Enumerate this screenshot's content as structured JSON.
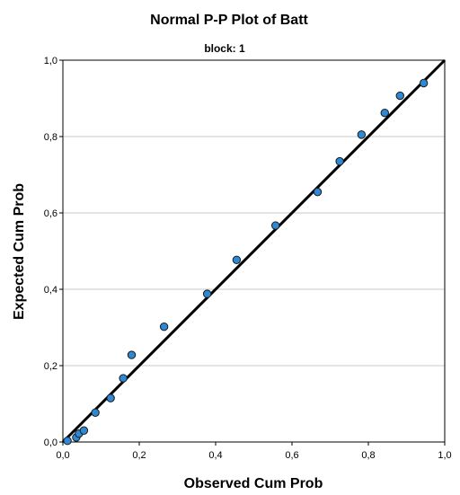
{
  "chart_data": {
    "type": "scatter",
    "title": "Normal P-P Plot of Batt",
    "subtitle": "block: 1",
    "xlabel": "Observed Cum Prob",
    "ylabel": "Expected Cum Prob",
    "xlim": [
      0,
      1
    ],
    "ylim": [
      0,
      1
    ],
    "xticks": [
      "0,0",
      "0,2",
      "0,4",
      "0,6",
      "0,8",
      "1,0"
    ],
    "yticks": [
      "0,0",
      "0,2",
      "0,4",
      "0,6",
      "0,8",
      "1,0"
    ],
    "grid": "horizontal",
    "reference_line": [
      [
        0,
        0
      ],
      [
        1,
        1
      ]
    ],
    "point_color": "#2d89d6",
    "points": [
      {
        "x": 0.012,
        "y": 0.003
      },
      {
        "x": 0.035,
        "y": 0.012
      },
      {
        "x": 0.042,
        "y": 0.022
      },
      {
        "x": 0.055,
        "y": 0.03
      },
      {
        "x": 0.085,
        "y": 0.077
      },
      {
        "x": 0.125,
        "y": 0.115
      },
      {
        "x": 0.158,
        "y": 0.167
      },
      {
        "x": 0.18,
        "y": 0.228
      },
      {
        "x": 0.265,
        "y": 0.302
      },
      {
        "x": 0.378,
        "y": 0.388
      },
      {
        "x": 0.455,
        "y": 0.477
      },
      {
        "x": 0.557,
        "y": 0.567
      },
      {
        "x": 0.667,
        "y": 0.655
      },
      {
        "x": 0.725,
        "y": 0.735
      },
      {
        "x": 0.782,
        "y": 0.805
      },
      {
        "x": 0.843,
        "y": 0.862
      },
      {
        "x": 0.883,
        "y": 0.907
      },
      {
        "x": 0.945,
        "y": 0.94
      }
    ]
  }
}
